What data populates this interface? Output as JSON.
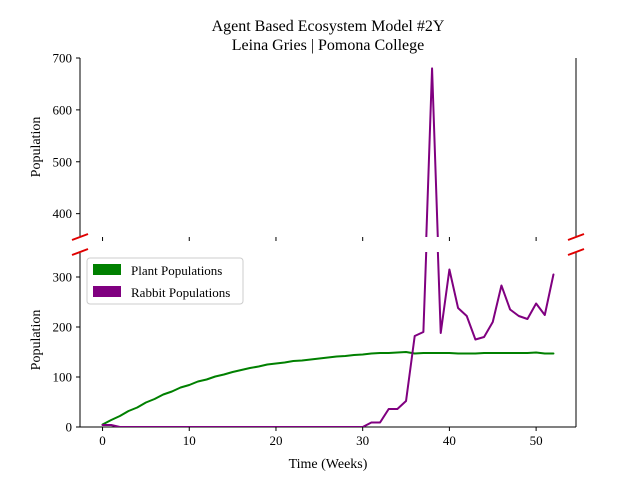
{
  "chart_data": {
    "type": "line",
    "title": "Agent Based Ecosystem Model #2Y",
    "subtitle": "Leina Gries | Pomona College",
    "xlabel": "Time (Weeks)",
    "ylabel_top": "Population",
    "ylabel_bottom": "Population",
    "xlim": [
      -2.6,
      54.6
    ],
    "ylim_top": [
      355,
      700
    ],
    "ylim_bottom": [
      0,
      350
    ],
    "x_ticks": [
      0,
      10,
      20,
      30,
      40,
      50
    ],
    "y_ticks_top": [
      400,
      500,
      600,
      700
    ],
    "y_ticks_bottom": [
      0,
      100,
      200,
      300
    ],
    "broken_axis": true,
    "grid": false,
    "legend_position": "left",
    "x": [
      0,
      1,
      2,
      3,
      4,
      5,
      6,
      7,
      8,
      9,
      10,
      11,
      12,
      13,
      14,
      15,
      16,
      17,
      18,
      19,
      20,
      21,
      22,
      23,
      24,
      25,
      26,
      27,
      28,
      29,
      30,
      31,
      32,
      33,
      34,
      35,
      36,
      37,
      38,
      39,
      40,
      41,
      42,
      43,
      44,
      45,
      46,
      47,
      48,
      49,
      50,
      51,
      52
    ],
    "series": [
      {
        "name": "Plant Populations",
        "color": "#008000",
        "values": [
          5,
          14,
          22,
          32,
          39,
          49,
          56,
          65,
          71,
          79,
          84,
          91,
          95,
          101,
          105,
          110,
          114,
          118,
          121,
          125,
          127,
          129,
          132,
          133,
          135,
          137,
          139,
          141,
          142,
          144,
          145,
          147,
          148,
          148,
          149,
          150,
          147,
          148,
          148,
          148,
          148,
          147,
          147,
          147,
          148,
          148,
          148,
          148,
          148,
          148,
          149,
          147,
          147
        ]
      },
      {
        "name": "Rabbit Populations",
        "color": "#800080",
        "values": [
          4,
          4,
          0,
          0,
          0,
          0,
          0,
          0,
          0,
          0,
          0,
          0,
          0,
          0,
          0,
          0,
          0,
          0,
          0,
          0,
          0,
          0,
          0,
          0,
          0,
          0,
          0,
          0,
          0,
          0,
          0,
          9,
          9,
          36,
          36,
          52,
          182,
          190,
          680,
          188,
          315,
          238,
          222,
          175,
          180,
          210,
          283,
          235,
          222,
          216,
          247,
          224,
          305
        ]
      }
    ]
  }
}
